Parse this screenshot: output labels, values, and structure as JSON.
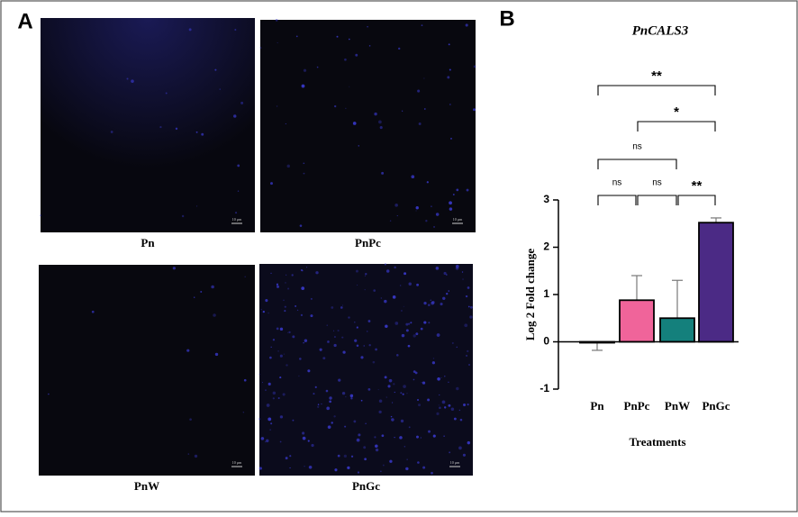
{
  "panel_labels": [
    "A",
    "B"
  ],
  "images": [
    {
      "label": "Pn",
      "scale": "10 µm"
    },
    {
      "label": "PnPc",
      "scale": "10 µm"
    },
    {
      "label": "PnW",
      "scale": "10 µm"
    },
    {
      "label": "PnGc",
      "scale": "10 µm"
    }
  ],
  "chart_data": {
    "type": "bar",
    "title": "PnCALS3",
    "categories": [
      "Pn",
      "PnPc",
      "PnW",
      "PnGc"
    ],
    "values": [
      -0.01,
      0.88,
      0.5,
      2.52
    ],
    "errors": [
      0.17,
      0.52,
      0.8,
      0.1
    ],
    "colors": [
      "#e0e0e0",
      "#f0649a",
      "#14807c",
      "#4b2a85"
    ],
    "ylim": [
      -1,
      3
    ],
    "yticks": [
      -1,
      0,
      1,
      2,
      3
    ],
    "y_label": "Log 2 Fold change",
    "x_label": "Treatments",
    "significance": [
      {
        "from": "Pn",
        "to": "PnGc",
        "label": "**"
      },
      {
        "from": "PnPc",
        "to": "PnGc",
        "label": "*"
      },
      {
        "from": "Pn",
        "to": "PnW",
        "label": "ns"
      },
      {
        "from": "Pn",
        "to": "PnPc",
        "label": "ns"
      },
      {
        "from": "PnPc",
        "to": "PnW",
        "label": "ns"
      },
      {
        "from": "PnW",
        "to": "PnGc",
        "label": "**"
      }
    ]
  }
}
